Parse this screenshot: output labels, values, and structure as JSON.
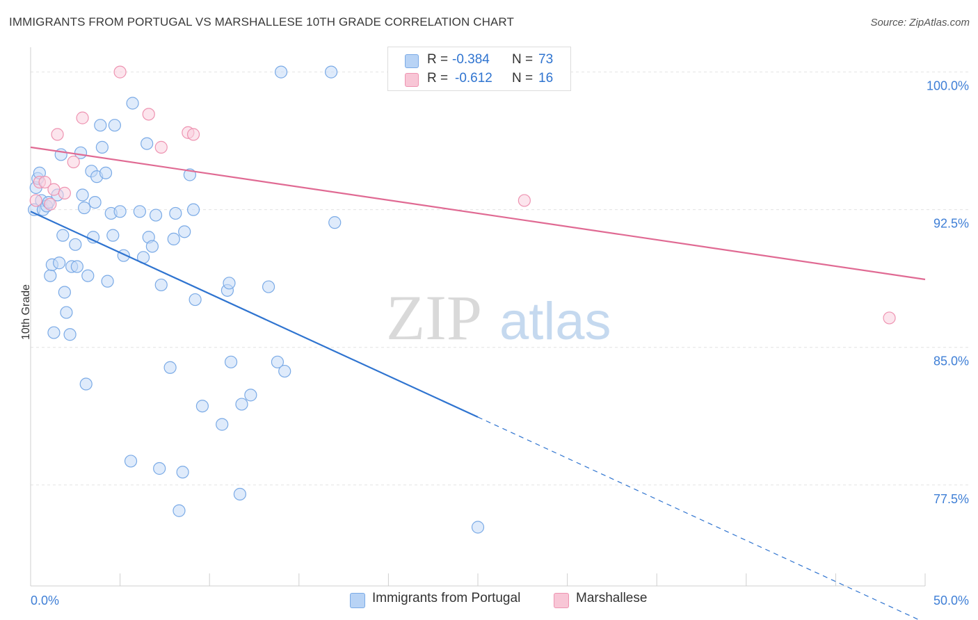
{
  "title": "IMMIGRANTS FROM PORTUGAL VS MARSHALLESE 10TH GRADE CORRELATION CHART",
  "source": "Source: ZipAtlas.com",
  "watermark": {
    "zip": "ZIP",
    "atlas": "atlas"
  },
  "legend": {
    "r_label": "R =",
    "n_label": "N =",
    "rows": [
      {
        "r": "-0.384",
        "n": "73",
        "color": "#b8d3f5",
        "border": "#7aaae6"
      },
      {
        "r": "-0.612",
        "n": "16",
        "color": "#f8c6d6",
        "border": "#ee93b1"
      }
    ]
  },
  "chart_data": {
    "type": "scatter",
    "xlabel": "",
    "ylabel": "10th Grade",
    "xlim": [
      0,
      50
    ],
    "ylim": [
      72,
      101.5
    ],
    "x_tick_labels": [
      "0.0%",
      "50.0%"
    ],
    "y_ticks": [
      77.5,
      85.0,
      92.5,
      100.0
    ],
    "y_tick_labels": [
      "77.5%",
      "85.0%",
      "92.5%",
      "100.0%"
    ],
    "grid": true,
    "legend_position": "top-center",
    "series": [
      {
        "name": "Immigrants from Portugal",
        "color": "#7aaae6",
        "fill": "#c5dbf7",
        "trend": {
          "x0": 0,
          "y0": 92.4,
          "x1": 25,
          "y1": 81.2,
          "dash_to_x": 50,
          "dash_to_y": 70.0,
          "line_color": "#2f74d0"
        },
        "points": [
          [
            0.2,
            92.5
          ],
          [
            0.3,
            93.7
          ],
          [
            0.4,
            94.2
          ],
          [
            0.5,
            94.5
          ],
          [
            0.6,
            93.0
          ],
          [
            0.7,
            92.5
          ],
          [
            0.9,
            92.7
          ],
          [
            1.0,
            92.9
          ],
          [
            1.1,
            88.9
          ],
          [
            1.2,
            89.5
          ],
          [
            1.3,
            85.8
          ],
          [
            1.5,
            93.3
          ],
          [
            1.6,
            89.6
          ],
          [
            1.7,
            95.5
          ],
          [
            1.8,
            91.1
          ],
          [
            1.9,
            88.0
          ],
          [
            2.0,
            86.9
          ],
          [
            2.2,
            85.7
          ],
          [
            2.3,
            89.4
          ],
          [
            2.5,
            90.6
          ],
          [
            2.6,
            89.4
          ],
          [
            2.8,
            95.6
          ],
          [
            2.9,
            93.3
          ],
          [
            3.0,
            92.6
          ],
          [
            3.1,
            83.0
          ],
          [
            3.2,
            88.9
          ],
          [
            3.4,
            94.6
          ],
          [
            3.5,
            91.0
          ],
          [
            3.6,
            92.9
          ],
          [
            3.7,
            94.3
          ],
          [
            3.9,
            97.1
          ],
          [
            4.0,
            95.9
          ],
          [
            4.2,
            94.5
          ],
          [
            4.3,
            88.6
          ],
          [
            4.5,
            92.3
          ],
          [
            4.6,
            91.1
          ],
          [
            4.7,
            97.1
          ],
          [
            5.0,
            92.4
          ],
          [
            5.2,
            90.0
          ],
          [
            5.7,
            98.3
          ],
          [
            5.6,
            78.8
          ],
          [
            6.1,
            92.4
          ],
          [
            6.3,
            89.9
          ],
          [
            6.5,
            96.1
          ],
          [
            6.6,
            91.0
          ],
          [
            6.8,
            90.5
          ],
          [
            7.0,
            92.2
          ],
          [
            7.2,
            78.4
          ],
          [
            7.3,
            88.4
          ],
          [
            7.8,
            83.9
          ],
          [
            8.0,
            90.9
          ],
          [
            8.1,
            92.3
          ],
          [
            8.3,
            76.1
          ],
          [
            8.5,
            78.2
          ],
          [
            8.6,
            91.3
          ],
          [
            8.9,
            94.4
          ],
          [
            9.1,
            92.5
          ],
          [
            9.2,
            87.6
          ],
          [
            9.6,
            81.8
          ],
          [
            10.7,
            80.8
          ],
          [
            11.0,
            88.1
          ],
          [
            11.1,
            88.5
          ],
          [
            11.2,
            84.2
          ],
          [
            11.7,
            77.0
          ],
          [
            11.8,
            81.9
          ],
          [
            12.3,
            82.4
          ],
          [
            13.3,
            88.3
          ],
          [
            13.8,
            84.2
          ],
          [
            14.2,
            83.7
          ],
          [
            14.0,
            100.0
          ],
          [
            16.8,
            100.0
          ],
          [
            17.0,
            91.8
          ],
          [
            25.0,
            75.2
          ]
        ]
      },
      {
        "name": "Marshallese",
        "color": "#ee93b1",
        "fill": "#f9d0de",
        "trend": {
          "x0": 0,
          "y0": 95.9,
          "x1": 50,
          "y1": 88.7,
          "line_color": "#e06a93"
        },
        "points": [
          [
            0.3,
            93.0
          ],
          [
            0.5,
            94.0
          ],
          [
            0.8,
            94.0
          ],
          [
            1.1,
            92.8
          ],
          [
            1.3,
            93.6
          ],
          [
            1.5,
            96.6
          ],
          [
            1.9,
            93.4
          ],
          [
            2.4,
            95.1
          ],
          [
            2.9,
            97.5
          ],
          [
            5.0,
            100.0
          ],
          [
            6.6,
            97.7
          ],
          [
            7.3,
            95.9
          ],
          [
            8.8,
            96.7
          ],
          [
            9.1,
            96.6
          ],
          [
            27.6,
            93.0
          ],
          [
            48.0,
            86.6
          ]
        ]
      }
    ]
  },
  "bottom_legend": [
    {
      "label": "Immigrants from Portugal",
      "color": "#b8d3f5",
      "border": "#7aaae6"
    },
    {
      "label": "Marshallese",
      "color": "#f8c6d6",
      "border": "#ee93b1"
    }
  ]
}
